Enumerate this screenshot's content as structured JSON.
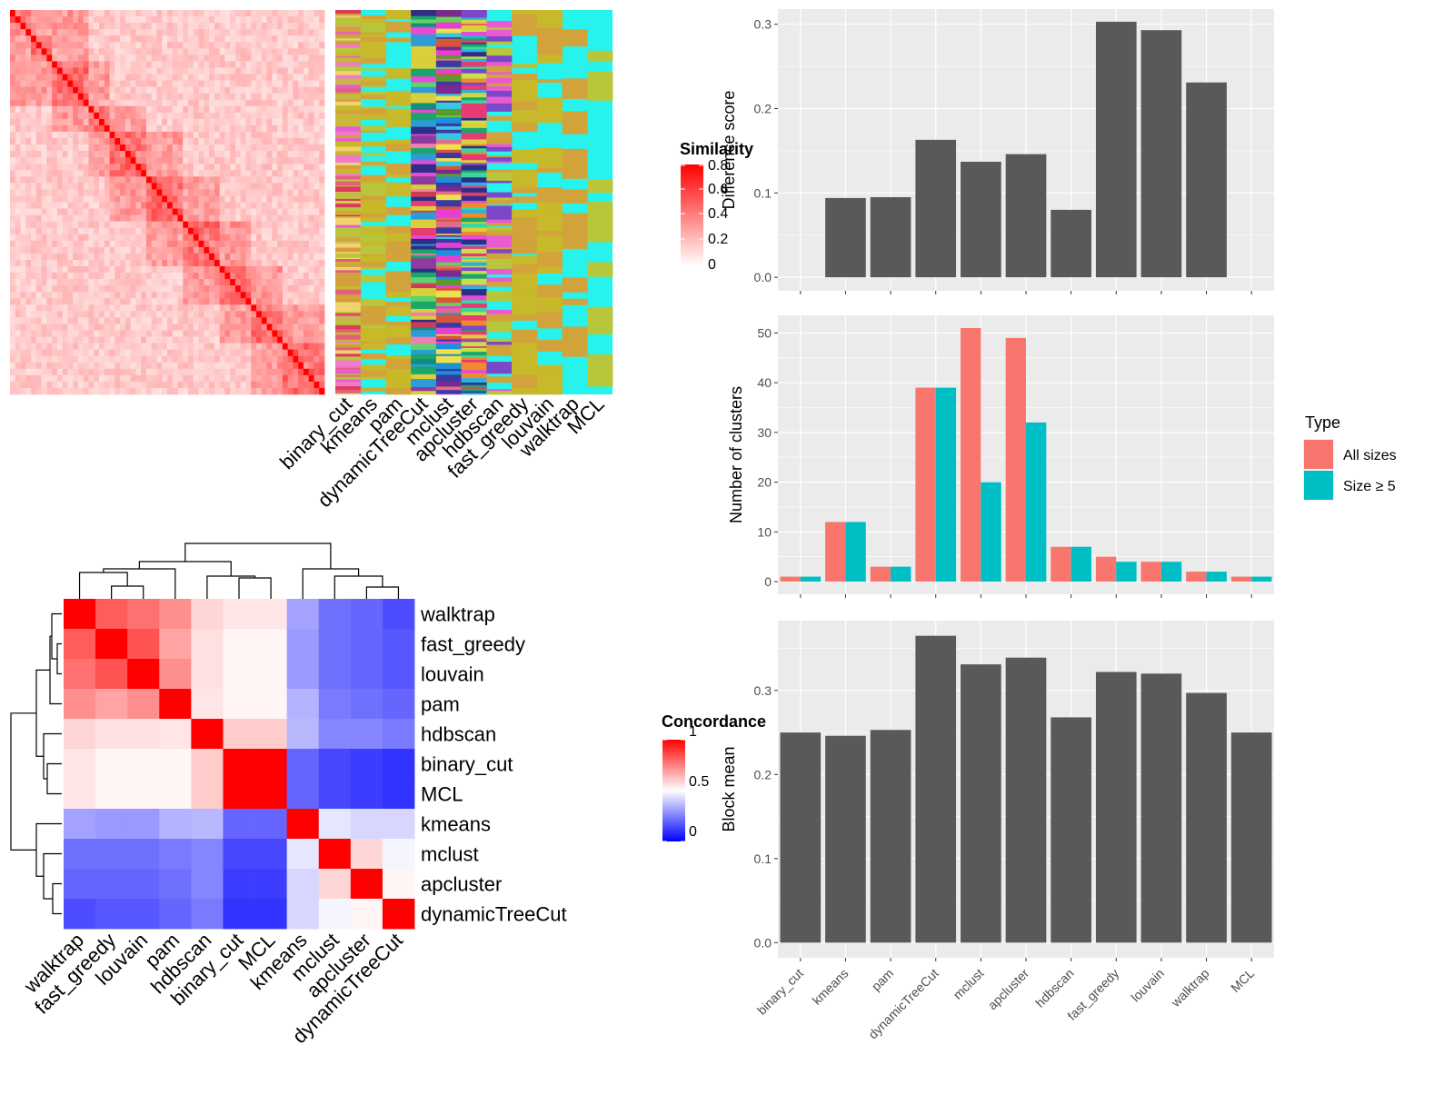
{
  "colors": {
    "panel_bg": "#ebebeb",
    "grid_major": "#ffffff",
    "bar_dark": "#595959",
    "all_sizes": "#f8766d",
    "size_ge5": "#00bfc4",
    "similarity_high": "#ff0000",
    "similarity_low": "#ffffff",
    "concordance_high": "#ff0000",
    "concordance_mid": "#ffffff",
    "concordance_low": "#0000ff",
    "membership_bg": "#27f2ec"
  },
  "similarity_heatmap": {
    "legend_title": "Similarity",
    "legend_ticks": [
      "0.8",
      "0.6",
      "0.4",
      "0.2",
      "0"
    ]
  },
  "membership_heatmap": {
    "methods": [
      "binary_cut",
      "kmeans",
      "pam",
      "dynamicTreeCut",
      "mclust",
      "apcluster",
      "hdbscan",
      "fast_greedy",
      "louvain",
      "walktrap",
      "MCL"
    ]
  },
  "concordance_heatmap": {
    "legend_title": "Concordance",
    "legend_ticks": [
      "1",
      "0.5",
      "0"
    ],
    "methods": [
      "walktrap",
      "fast_greedy",
      "louvain",
      "pam",
      "hdbscan",
      "binary_cut",
      "MCL",
      "kmeans",
      "mclust",
      "apcluster",
      "dynamicTreeCut"
    ],
    "matrix": [
      [
        1.0,
        0.82,
        0.78,
        0.72,
        0.58,
        0.55,
        0.55,
        0.32,
        0.22,
        0.2,
        0.15
      ],
      [
        0.82,
        1.0,
        0.84,
        0.68,
        0.56,
        0.52,
        0.52,
        0.3,
        0.22,
        0.2,
        0.17
      ],
      [
        0.78,
        0.84,
        1.0,
        0.72,
        0.56,
        0.52,
        0.52,
        0.3,
        0.22,
        0.2,
        0.17
      ],
      [
        0.72,
        0.68,
        0.72,
        1.0,
        0.55,
        0.52,
        0.52,
        0.35,
        0.24,
        0.22,
        0.2
      ],
      [
        0.58,
        0.56,
        0.56,
        0.55,
        1.0,
        0.6,
        0.6,
        0.36,
        0.26,
        0.26,
        0.24
      ],
      [
        0.55,
        0.52,
        0.52,
        0.52,
        0.6,
        1.0,
        1.0,
        0.2,
        0.14,
        0.12,
        0.1
      ],
      [
        0.55,
        0.52,
        0.52,
        0.52,
        0.6,
        1.0,
        1.0,
        0.2,
        0.14,
        0.12,
        0.1
      ],
      [
        0.32,
        0.3,
        0.3,
        0.35,
        0.36,
        0.2,
        0.2,
        1.0,
        0.45,
        0.42,
        0.42
      ],
      [
        0.22,
        0.22,
        0.22,
        0.24,
        0.26,
        0.14,
        0.14,
        0.45,
        1.0,
        0.58,
        0.48
      ],
      [
        0.2,
        0.2,
        0.2,
        0.22,
        0.26,
        0.12,
        0.12,
        0.42,
        0.58,
        1.0,
        0.52
      ],
      [
        0.15,
        0.17,
        0.17,
        0.2,
        0.24,
        0.1,
        0.1,
        0.42,
        0.48,
        0.52,
        1.0
      ]
    ]
  },
  "chart_data": [
    {
      "type": "bar",
      "categories": [
        "binary_cut",
        "kmeans",
        "pam",
        "dynamicTreeCut",
        "mclust",
        "apcluster",
        "hdbscan",
        "fast_greedy",
        "louvain",
        "walktrap",
        "MCL"
      ],
      "values": [
        0.0,
        0.094,
        0.095,
        0.163,
        0.137,
        0.146,
        0.08,
        0.303,
        0.293,
        0.231,
        0.0
      ],
      "ylabel": "Difference score",
      "ylim": [
        -0.016,
        0.318
      ],
      "yticks": [
        "0.0",
        "0.1",
        "0.2",
        "0.3"
      ],
      "grid": true
    },
    {
      "type": "bar",
      "categories": [
        "binary_cut",
        "kmeans",
        "pam",
        "dynamicTreeCut",
        "mclust",
        "apcluster",
        "hdbscan",
        "fast_greedy",
        "louvain",
        "walktrap",
        "MCL"
      ],
      "series": [
        {
          "name": "All sizes",
          "values": [
            1,
            12,
            3,
            39,
            51,
            49,
            7,
            5,
            4,
            2,
            1
          ]
        },
        {
          "name": "Size ≥ 5",
          "values": [
            1,
            12,
            3,
            39,
            20,
            32,
            7,
            4,
            4,
            2,
            1
          ]
        }
      ],
      "ylabel": "Number of clusters",
      "ylim": [
        -2.55,
        53.55
      ],
      "yticks": [
        "0",
        "10",
        "20",
        "30",
        "40",
        "50"
      ],
      "legend_title": "Type",
      "legend_position": "right",
      "grid": true
    },
    {
      "type": "bar",
      "categories": [
        "binary_cut",
        "kmeans",
        "pam",
        "dynamicTreeCut",
        "mclust",
        "apcluster",
        "hdbscan",
        "fast_greedy",
        "louvain",
        "walktrap",
        "MCL"
      ],
      "values": [
        0.25,
        0.246,
        0.253,
        0.365,
        0.331,
        0.339,
        0.268,
        0.322,
        0.32,
        0.297,
        0.25
      ],
      "ylabel": "Block mean",
      "ylim": [
        -0.018,
        0.383
      ],
      "yticks": [
        "0.0",
        "0.1",
        "0.2",
        "0.3"
      ],
      "grid": true
    }
  ]
}
